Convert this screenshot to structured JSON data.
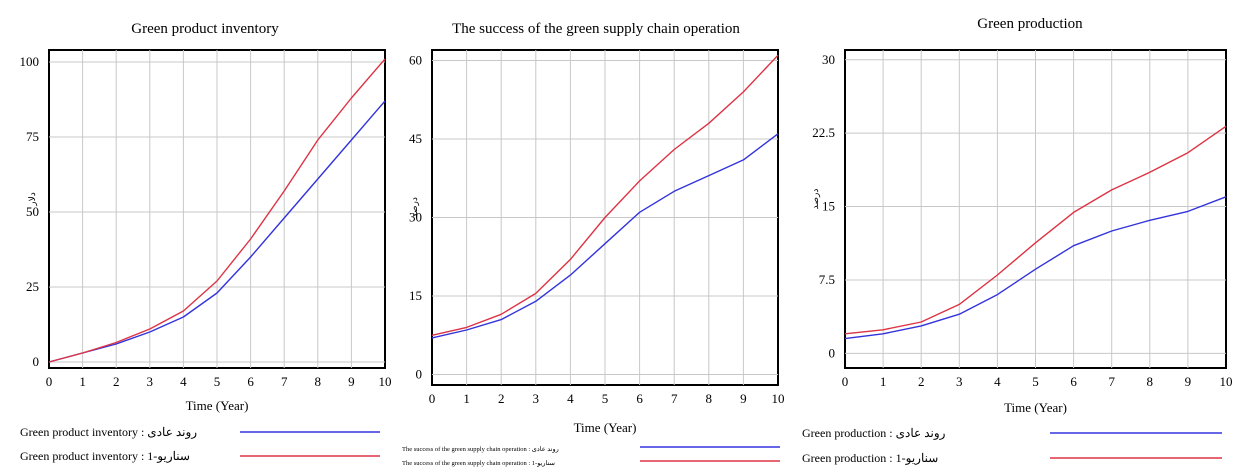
{
  "chart_data": [
    {
      "type": "line",
      "title": "Green product inventory",
      "xlabel": "Time (Year)",
      "ylabel": "دلار",
      "x": [
        0,
        1,
        2,
        3,
        4,
        5,
        6,
        7,
        8,
        9,
        10
      ],
      "xticks": [
        "0",
        "1",
        "2",
        "3",
        "4",
        "5",
        "6",
        "7",
        "8",
        "9",
        "10"
      ],
      "yticks": [
        "0",
        "25",
        "50",
        "75",
        "100"
      ],
      "ytick_values": [
        0,
        25,
        50,
        75,
        100
      ],
      "xlim": [
        0,
        10
      ],
      "ylim": [
        -2,
        104
      ],
      "grid": true,
      "legend_position": "bottom",
      "series": [
        {
          "name": "Green product inventory : روند عادی",
          "color": "#3333dd",
          "values": [
            0,
            3,
            6,
            10,
            15,
            23,
            35,
            48,
            61,
            74,
            87
          ]
        },
        {
          "name": "Green product inventory : سناریو-1",
          "color": "#dd3344",
          "values": [
            0,
            3,
            6.5,
            11,
            17,
            27,
            41,
            57,
            74,
            88,
            101
          ]
        }
      ]
    },
    {
      "type": "line",
      "title": "The success of the green supply chain operation",
      "xlabel": "Time (Year)",
      "ylabel": "درصد",
      "x": [
        0,
        1,
        2,
        3,
        4,
        5,
        6,
        7,
        8,
        9,
        10
      ],
      "xticks": [
        "0",
        "1",
        "2",
        "3",
        "4",
        "5",
        "6",
        "7",
        "8",
        "9",
        "10"
      ],
      "yticks": [
        "0",
        "15",
        "30",
        "45",
        "60"
      ],
      "ytick_values": [
        0,
        15,
        30,
        45,
        60
      ],
      "xlim": [
        0,
        10
      ],
      "ylim": [
        -2,
        62
      ],
      "grid": true,
      "legend_position": "bottom",
      "series": [
        {
          "name": "The success of the green supply chain operation : روند عادی",
          "color": "#3333dd",
          "values": [
            7,
            8.5,
            10.5,
            14,
            19,
            25,
            31,
            35,
            38,
            41,
            46
          ]
        },
        {
          "name": "The success of the green supply chain operation : سناریو-1",
          "color": "#dd3344",
          "values": [
            7.5,
            9,
            11.5,
            15.5,
            22,
            30,
            37,
            43,
            48,
            54,
            61
          ]
        }
      ]
    },
    {
      "type": "line",
      "title": "Green production",
      "xlabel": "Time (Year)",
      "ylabel": "درصد",
      "x": [
        0,
        1,
        2,
        3,
        4,
        5,
        6,
        7,
        8,
        9,
        10
      ],
      "xticks": [
        "0",
        "1",
        "2",
        "3",
        "4",
        "5",
        "6",
        "7",
        "8",
        "9",
        "10"
      ],
      "yticks": [
        "0",
        "7.5",
        "15",
        "22.5",
        "30"
      ],
      "ytick_values": [
        0,
        7.5,
        15,
        22.5,
        30
      ],
      "xlim": [
        0,
        10
      ],
      "ylim": [
        -1.5,
        31
      ],
      "grid": true,
      "legend_position": "bottom",
      "series": [
        {
          "name": "Green production : روند عادی",
          "color": "#3333dd",
          "values": [
            1.5,
            2,
            2.8,
            4,
            6,
            8.6,
            11,
            12.5,
            13.6,
            14.5,
            16
          ]
        },
        {
          "name": "Green production : سناریو-1",
          "color": "#dd3344",
          "values": [
            2,
            2.4,
            3.2,
            5,
            8,
            11.3,
            14.4,
            16.7,
            18.5,
            20.5,
            23.2
          ]
        }
      ]
    }
  ]
}
